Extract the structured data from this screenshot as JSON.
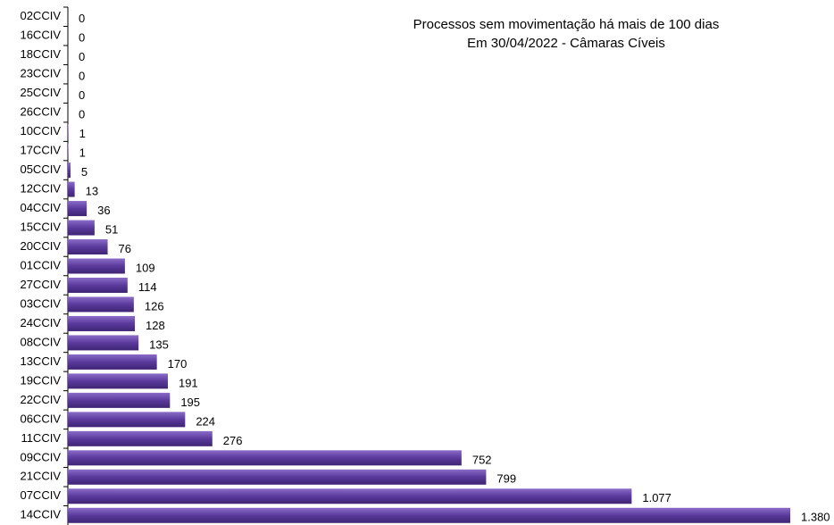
{
  "chart_data": {
    "type": "bar",
    "orientation": "horizontal",
    "title": [
      "Processos sem movimentação há mais de 100 dias",
      "Em 30/04/2022 - Câmaras Cíveis"
    ],
    "categories": [
      "02CCIV",
      "16CCIV",
      "18CCIV",
      "23CCIV",
      "25CCIV",
      "26CCIV",
      "10CCIV",
      "17CCIV",
      "05CCIV",
      "12CCIV",
      "04CCIV",
      "15CCIV",
      "20CCIV",
      "01CCIV",
      "27CCIV",
      "03CCIV",
      "24CCIV",
      "08CCIV",
      "13CCIV",
      "19CCIV",
      "22CCIV",
      "06CCIV",
      "11CCIV",
      "09CCIV",
      "21CCIV",
      "07CCIV",
      "14CCIV"
    ],
    "values": [
      0,
      0,
      0,
      0,
      0,
      0,
      1,
      1,
      5,
      13,
      36,
      51,
      76,
      109,
      114,
      126,
      128,
      135,
      170,
      191,
      195,
      224,
      276,
      752,
      799,
      1077,
      1380
    ],
    "value_labels": [
      "0",
      "0",
      "0",
      "0",
      "0",
      "0",
      "1",
      "1",
      "5",
      "13",
      "36",
      "51",
      "76",
      "109",
      "114",
      "126",
      "128",
      "135",
      "170",
      "191",
      "195",
      "224",
      "276",
      "752",
      "799",
      "1.077",
      "1.380"
    ],
    "color": "#5a3a9c"
  }
}
